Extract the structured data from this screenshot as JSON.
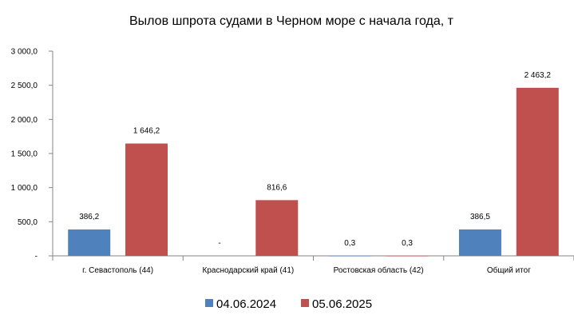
{
  "chart_data": {
    "type": "bar",
    "title": "Вылов шпрота судами в Черном море с начала  года, т",
    "categories": [
      "г. Севастополь (44)",
      "Краснодарский край (41)",
      "Ростовская область (42)",
      "Общий итог"
    ],
    "series": [
      {
        "name": "04.06.2024",
        "color": "#4F81BD",
        "values": [
          386.2,
          null,
          0.3,
          386.5
        ],
        "labels": [
          "386,2",
          "-",
          "0,3",
          "386,5"
        ]
      },
      {
        "name": "05.06.2025",
        "color": "#C0504D",
        "values": [
          1646.2,
          816.6,
          0.3,
          2463.2
        ],
        "labels": [
          "1 646,2",
          "816,6",
          "0,3",
          "2 463,2"
        ]
      }
    ],
    "ylim": [
      0,
      3000
    ],
    "yticks": [
      0,
      500,
      1000,
      1500,
      2000,
      2500,
      3000
    ],
    "ytick_labels": [
      "-",
      "500,0",
      "1 000,0",
      "1 500,0",
      "2 000,0",
      "2 500,0",
      "3 000,0"
    ],
    "grid": false,
    "legend_position": "bottom"
  }
}
